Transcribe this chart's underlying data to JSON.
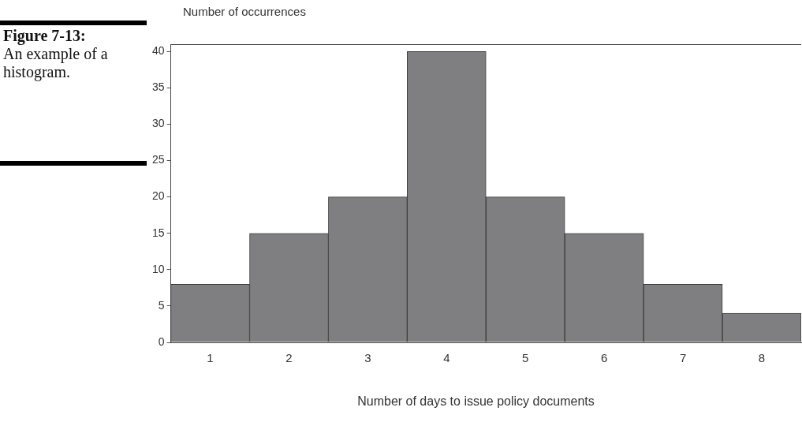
{
  "chart_data": {
    "type": "bar",
    "ylabel": "Number of occurrences",
    "xlabel": "Number of days to issue policy documents",
    "annotations": [
      "Figure 7-13:",
      "An example of a histogram."
    ],
    "categories": [
      "1",
      "2",
      "3",
      "4",
      "5",
      "6",
      "7",
      "8"
    ],
    "values": [
      8,
      15,
      20,
      40,
      20,
      15,
      8,
      4
    ],
    "color": "#7f7f81",
    "ylim": [
      0,
      41
    ],
    "yticks": [
      0,
      5,
      10,
      15,
      20,
      25,
      30,
      35,
      40
    ],
    "grid": false,
    "legend": false
  }
}
